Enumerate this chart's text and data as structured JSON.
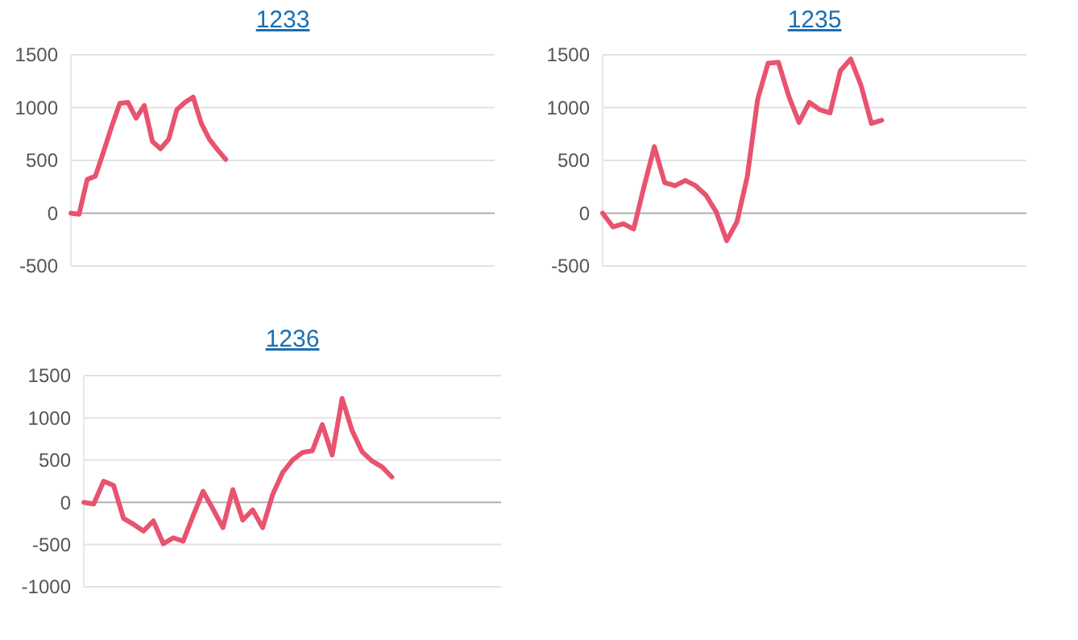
{
  "chart_data": [
    {
      "type": "line",
      "title": "1233",
      "categories": [
        null,
        null,
        null,
        null,
        null,
        null,
        null,
        null,
        null,
        null,
        null,
        null,
        null,
        null,
        null,
        null,
        null,
        null,
        null,
        null,
        null,
        null,
        null,
        null,
        null,
        null,
        null,
        null,
        null,
        null,
        null,
        null,
        null,
        null,
        null,
        null,
        null,
        null,
        null,
        null,
        null,
        null,
        null,
        null,
        null,
        null,
        null,
        null,
        null,
        null,
        null,
        null,
        null
      ],
      "series": [
        {
          "color": "#e8536f",
          "values": [
            0,
            -10,
            320,
            350,
            580,
            820,
            1040,
            1050,
            900,
            1020,
            680,
            610,
            700,
            980,
            1050,
            1100,
            850,
            700,
            600,
            510,
            null,
            null,
            null,
            null,
            null,
            null,
            null,
            null,
            null,
            null,
            null,
            null,
            null,
            null,
            null,
            null,
            null,
            null,
            null,
            null,
            null,
            null,
            null,
            null,
            null,
            null,
            null,
            null,
            null,
            null,
            null,
            null,
            null
          ]
        }
      ],
      "ylim": [
        -500,
        1500
      ],
      "yticks": [
        -500,
        0,
        500,
        1000,
        1500
      ],
      "grid": "y",
      "marker": "none",
      "line_style": "solid"
    },
    {
      "type": "line",
      "title": "1235",
      "categories": [
        null,
        null,
        null,
        null,
        null,
        null,
        null,
        null,
        null,
        null,
        null,
        null,
        null,
        null,
        null,
        null,
        null,
        null,
        null,
        null,
        null,
        null,
        null,
        null,
        null,
        null,
        null,
        null,
        null,
        null,
        null,
        null,
        null,
        null,
        null,
        null,
        null,
        null,
        null,
        null,
        null,
        null
      ],
      "series": [
        {
          "color": "#e8536f",
          "values": [
            0,
            -130,
            -100,
            -150,
            250,
            630,
            290,
            260,
            310,
            260,
            170,
            10,
            -260,
            -80,
            350,
            1080,
            1420,
            1430,
            1110,
            860,
            1050,
            980,
            950,
            1350,
            1460,
            1210,
            850,
            880,
            null,
            null,
            null,
            null,
            null,
            null,
            null,
            null,
            null,
            null,
            null,
            null,
            null,
            null
          ]
        }
      ],
      "ylim": [
        -500,
        1500
      ],
      "yticks": [
        -500,
        0,
        500,
        1000,
        1500
      ],
      "grid": "y",
      "marker": "none",
      "line_style": "solid"
    },
    {
      "type": "line",
      "title": "1236",
      "categories": [
        null,
        null,
        null,
        null,
        null,
        null,
        null,
        null,
        null,
        null,
        null,
        null,
        null,
        null,
        null,
        null,
        null,
        null,
        null,
        null,
        null,
        null,
        null,
        null,
        null,
        null,
        null,
        null,
        null,
        null,
        null,
        null,
        null,
        null,
        null,
        null,
        null,
        null,
        null,
        null,
        null,
        null,
        null
      ],
      "series": [
        {
          "color": "#e8536f",
          "values": [
            0,
            -20,
            250,
            200,
            -190,
            -260,
            -340,
            -220,
            -490,
            -420,
            -460,
            -160,
            130,
            -80,
            -300,
            150,
            -210,
            -90,
            -300,
            90,
            350,
            500,
            590,
            610,
            920,
            560,
            1230,
            850,
            600,
            490,
            420,
            300,
            null,
            null,
            null,
            null,
            null,
            null,
            null,
            null,
            null,
            null,
            null
          ]
        }
      ],
      "ylim": [
        -1000,
        1500
      ],
      "yticks": [
        -1000,
        -500,
        0,
        500,
        1000,
        1500
      ],
      "grid": "y",
      "marker": "none",
      "line_style": "solid"
    }
  ]
}
